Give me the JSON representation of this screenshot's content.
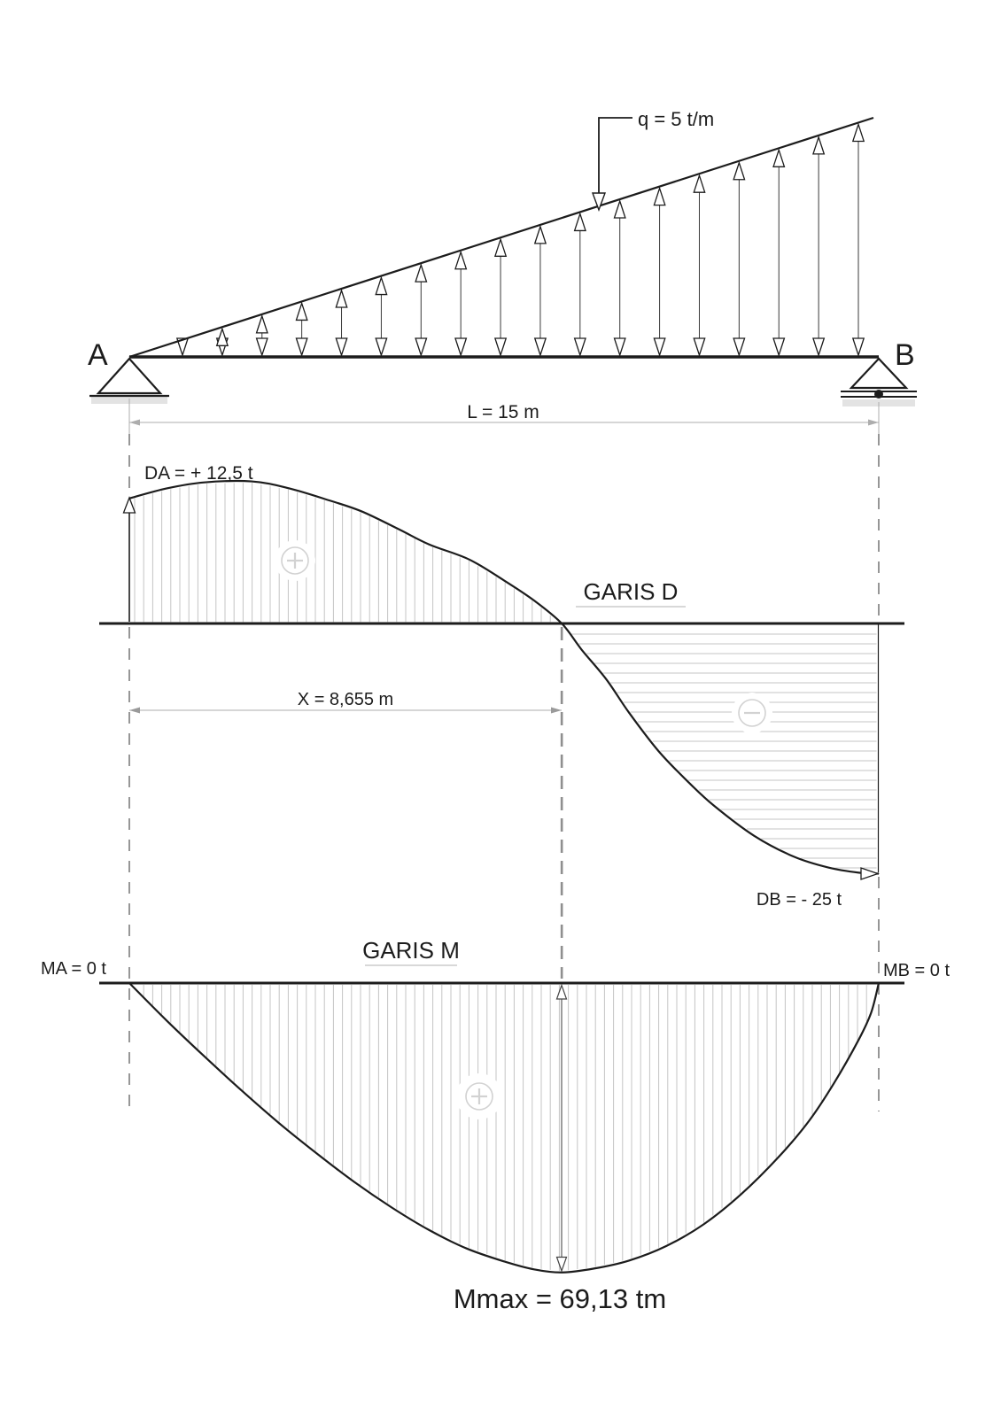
{
  "colors": {
    "ink": "#1c1c1c",
    "hatch": "#c4c4c4",
    "dim": "#adadad",
    "dash": "#5f5f5f",
    "center_dash": "#8f8f8f",
    "symbol": "#d2d2d2",
    "shadow": "#d9d9d9"
  },
  "beam": {
    "label_a": "A",
    "label_b": "B",
    "load_label": "q = 5 t/m",
    "load_q_t_per_m": 5,
    "span_label": "L = 15 m",
    "span_m": 15,
    "support_a": "pin",
    "support_b": "roller",
    "load_arrow_count": 18
  },
  "shear": {
    "title": "GARIS D",
    "reaction_a_label": "DA = + 12,5 t",
    "reaction_b_label": "DB = - 25 t",
    "zero_crossing_label": "X = 8,655 m",
    "reaction_a_t": 12.5,
    "reaction_b_t": -25,
    "zero_crossing_m": 8.655,
    "positive_region_symbol": "+",
    "negative_region_symbol": "−",
    "series_x_m": [
      0,
      0.75,
      1.5,
      2.45,
      3.2,
      4.0,
      4.65,
      5.4,
      6.0,
      6.8,
      7.5,
      8.1,
      8.655,
      9.05,
      9.55,
      10.0,
      10.6,
      11.2,
      11.7,
      12.5,
      13.3,
      14.0,
      14.6,
      15.0
    ],
    "series_v_t": [
      12.5,
      13.5,
      14.1,
      14.2,
      13.5,
      12.3,
      11.2,
      9.4,
      7.9,
      6.4,
      4.3,
      2.3,
      0,
      -2.6,
      -5.6,
      -8.9,
      -12.8,
      -15.9,
      -18.2,
      -21.2,
      -23.3,
      -24.4,
      -24.9,
      -25
    ]
  },
  "moment": {
    "title": "GARIS M",
    "ma_label": "MA = 0 t",
    "mb_label": "MB = 0 t",
    "mmax_label": "Mmax = 69,13 tm",
    "ma_tm": 0,
    "mb_tm": 0,
    "mmax_tm": 69.13,
    "mmax_at_m": 8.655,
    "positive_region_symbol": "+",
    "series_x_m": [
      0,
      0.75,
      1.5,
      2.25,
      3.0,
      3.75,
      4.5,
      5.25,
      6.0,
      6.75,
      7.5,
      8.1,
      8.655,
      9.3,
      10.0,
      10.75,
      11.5,
      12.25,
      13.0,
      13.6,
      14.1,
      14.6,
      14.85,
      15.0
    ],
    "series_m_tm": [
      0,
      9.0,
      17.5,
      25.7,
      33.5,
      40.7,
      47.5,
      53.6,
      59.0,
      63.4,
      66.5,
      68.4,
      69.13,
      68.2,
      66.3,
      62.8,
      57.6,
      50.4,
      41.5,
      33.0,
      24.0,
      13.5,
      7.0,
      0
    ]
  }
}
